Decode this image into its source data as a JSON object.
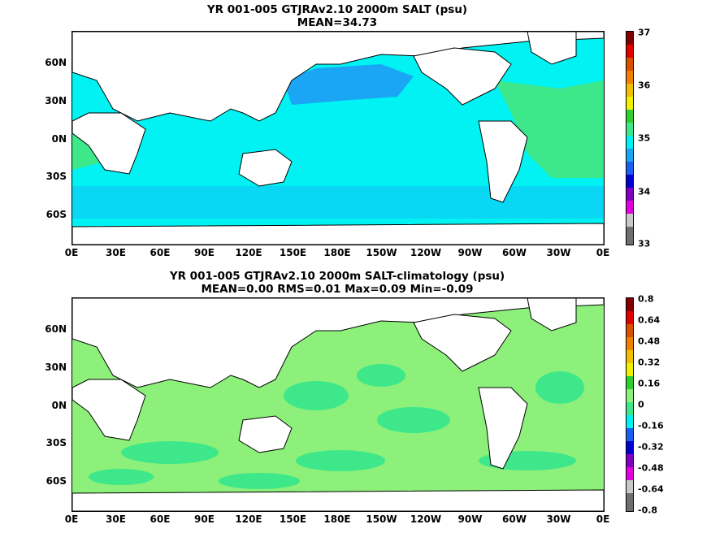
{
  "panels": [
    {
      "title": "YR 001-005 GTJRAv2.10 2000m SALT (psu)",
      "subtitle": "MEAN=34.73",
      "colorbar_labels": [
        "37",
        "36",
        "35",
        "34",
        "33"
      ],
      "field_color": "#00f2f2",
      "high_color": "#3ce88a",
      "low_color": "#1aa6f5"
    },
    {
      "title": "YR 001-005 GTJRAv2.10 2000m SALT-climatology (psu)",
      "subtitle": "MEAN=0.00   RMS=0.01   Max=0.09   Min=-0.09",
      "colorbar_labels": [
        "0.8",
        "0.64",
        "0.48",
        "0.32",
        "0.16",
        "0",
        "-0.16",
        "-0.32",
        "-0.48",
        "-0.64",
        "-0.8"
      ],
      "field_color": "#3ee88a",
      "high_color": "#8cf07a",
      "low_color": "#00f2f2"
    }
  ],
  "lon_labels": [
    "0E",
    "30E",
    "60E",
    "90E",
    "120E",
    "150E",
    "180E",
    "150W",
    "120W",
    "90W",
    "60W",
    "30W",
    "0E"
  ],
  "lat_labels": [
    "60N",
    "30N",
    "0N",
    "30S",
    "60S"
  ],
  "colorbar_colors": [
    "#6e6e6e",
    "#c8c8c8",
    "#e000e0",
    "#8000c0",
    "#0000d0",
    "#1a5ff0",
    "#1aa6f5",
    "#00f2f2",
    "#3ce88a",
    "#2ed02e",
    "#f0f000",
    "#f0c000",
    "#f08000",
    "#d85000",
    "#e00000",
    "#800000"
  ]
}
